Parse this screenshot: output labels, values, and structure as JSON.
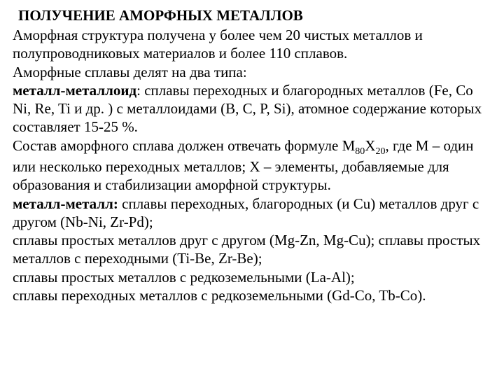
{
  "title": "ПОЛУЧЕНИЕ АМОРФНЫХ МЕТАЛЛОВ",
  "p1": "Аморфная структура получена у более чем 20 чистых металлов и полупроводниковых материалов и более 110 сплавов.",
  "p2": "Аморфные сплавы делят на два типа:",
  "p3_bold": "металл-металлоид",
  "p3_rest": ": сплавы переходных и благородных металлов (Fe, Co Ni, Re,  Ti  и др. ) с металлоидами (B, C, P, Si), атомное содержание которых составляет 15-25 %.",
  "p4_before": "Состав аморфного сплава должен отвечать формуле M",
  "p4_sub1": "80",
  "p4_mid": "X",
  "p4_sub2": "20",
  "p4_after": ", где M – один или несколько переходных металлов; X – элементы, добавляемые для образования и стабилизации аморфной структуры.",
  "p5_bold": "металл-металл:",
  "p5_rest": " сплавы переходных, благородных (и Cu) металлов друг с другом (Nb-Ni, Zr-Pd);",
  "p6": "сплавы простых металлов друг с другом (Mg-Zn, Mg-Cu); сплавы простых металлов с переходными (Ti-Be, Zr-Be);",
  "p7": "сплавы простых металлов с редкоземельными (La-Al);",
  "p8": "сплавы переходных металлов с редкоземельными (Gd-Co, Tb-Co).",
  "colors": {
    "text": "#000000",
    "background": "#ffffff"
  },
  "typography": {
    "font_family": "Times New Roman",
    "title_fontsize": 21,
    "body_fontsize": 21,
    "title_weight": "bold",
    "line_height": 1.25
  }
}
